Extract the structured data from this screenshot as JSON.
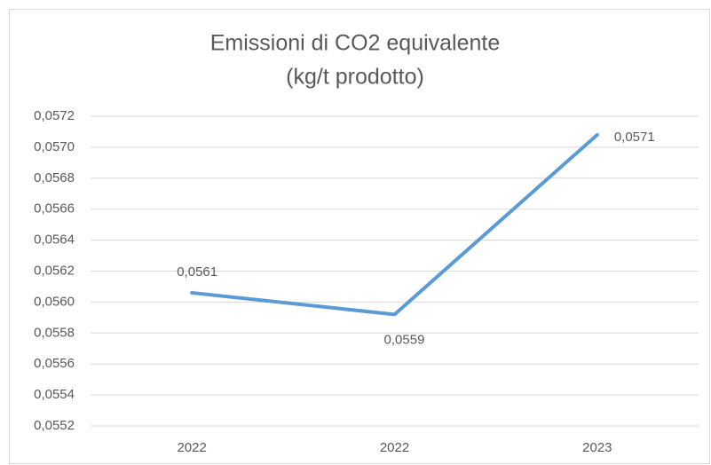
{
  "chart_data": {
    "type": "line",
    "title": [
      "Emissioni di CO2 equivalente",
      "(kg/t prodotto)"
    ],
    "categories": [
      "2022",
      "2022",
      "2023"
    ],
    "values": [
      0.05606,
      0.05592,
      0.05708
    ],
    "value_labels": [
      "0,0561",
      "0,0559",
      "0,0571"
    ],
    "color": "#5b9bd5",
    "ylim": [
      0.0552,
      0.0572
    ],
    "yticks": [
      {
        "value": 0.0552,
        "label": "0,0552"
      },
      {
        "value": 0.0554,
        "label": "0,0554"
      },
      {
        "value": 0.0556,
        "label": "0,0556"
      },
      {
        "value": 0.0558,
        "label": "0,0558"
      },
      {
        "value": 0.056,
        "label": "0,0560"
      },
      {
        "value": 0.0562,
        "label": "0,0562"
      },
      {
        "value": 0.0564,
        "label": "0,0564"
      },
      {
        "value": 0.0566,
        "label": "0,0566"
      },
      {
        "value": 0.0568,
        "label": "0,0568"
      },
      {
        "value": 0.057,
        "label": "0,0570"
      },
      {
        "value": 0.0572,
        "label": "0,0572"
      }
    ],
    "grid": true
  }
}
